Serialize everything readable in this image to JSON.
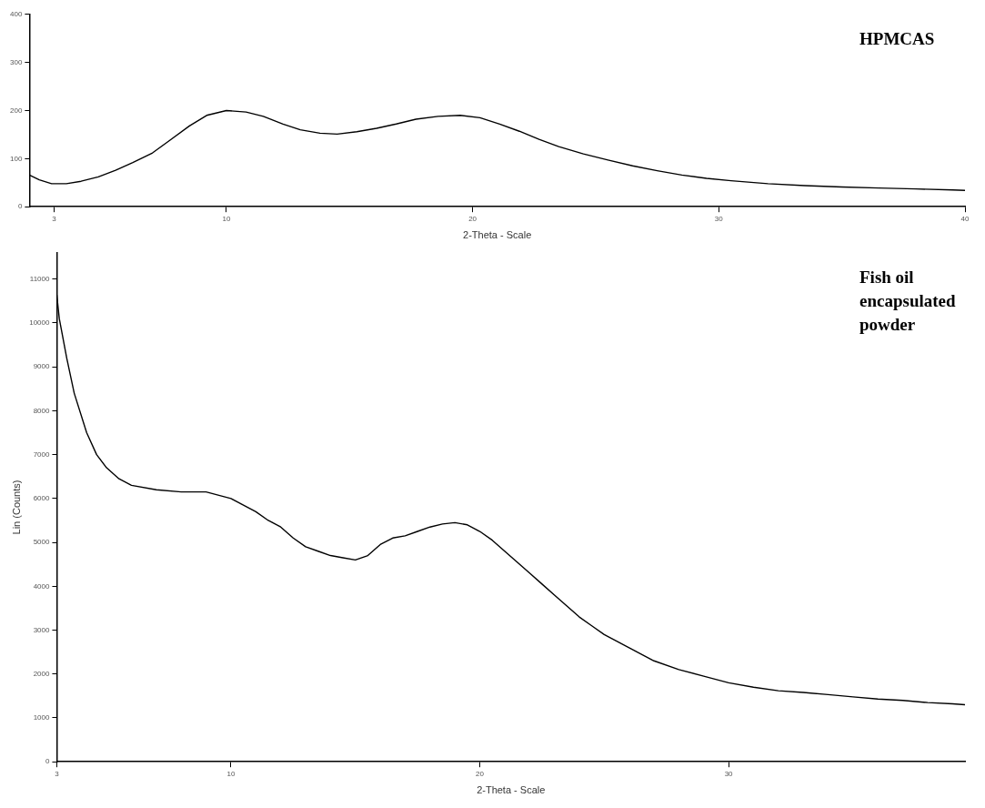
{
  "chart_data": [
    {
      "type": "line",
      "xlabel": "2-Theta - Scale",
      "annotations": [
        "HPMCAS"
      ],
      "xlim": [
        2,
        40
      ],
      "xticks": [
        3,
        10,
        20,
        30,
        40
      ],
      "ylim": [
        0,
        400
      ],
      "yticks": [
        0,
        100,
        200,
        300,
        400
      ],
      "grid": false,
      "series": [
        {
          "color": "#000000",
          "x": [
            2.0,
            2.4,
            2.9,
            3.5,
            4.1,
            4.8,
            5.5,
            6.2,
            7.0,
            7.7,
            8.5,
            9.2,
            10.0,
            10.8,
            11.5,
            12.3,
            13.0,
            13.8,
            14.5,
            15.3,
            16.1,
            16.9,
            17.7,
            18.6,
            19.5,
            20.3,
            21.1,
            21.9,
            22.7,
            23.5,
            24.5,
            25.5,
            26.5,
            27.5,
            28.5,
            29.5,
            30.5,
            32,
            33.5,
            35,
            36.5,
            38,
            39.5,
            40
          ],
          "values": [
            66,
            56,
            48,
            48,
            53,
            62,
            76,
            92,
            112,
            138,
            168,
            190,
            200,
            197,
            188,
            172,
            160,
            153,
            151,
            156,
            163,
            172,
            182,
            188,
            190,
            185,
            172,
            157,
            140,
            125,
            110,
            97,
            85,
            75,
            66,
            59,
            54,
            48,
            44,
            41,
            39,
            37,
            35,
            34
          ]
        }
      ]
    },
    {
      "type": "line",
      "xlabel": "2-Theta - Scale",
      "ylabel": "Lin (Counts)",
      "annotations": [
        "Fish oil encapsulated powder"
      ],
      "xlim": [
        3,
        39.5
      ],
      "xticks": [
        3,
        10,
        20,
        30
      ],
      "ylim": [
        0,
        11600
      ],
      "yticks": [
        0,
        1000,
        2000,
        3000,
        4000,
        5000,
        6000,
        7000,
        8000,
        9000,
        10000,
        11000
      ],
      "grid": false,
      "series": [
        {
          "color": "#000000",
          "x": [
            3.0,
            3.1,
            3.4,
            3.7,
            4.2,
            4.6,
            5.0,
            5.5,
            6.0,
            7.0,
            8.0,
            9.0,
            10.0,
            10.5,
            11.0,
            11.5,
            12.0,
            12.5,
            13.0,
            13.5,
            14.0,
            14.5,
            15.0,
            15.5,
            16.0,
            16.5,
            17.0,
            17.5,
            18.0,
            18.5,
            19.0,
            19.5,
            20.0,
            20.5,
            21.0,
            21.5,
            22.0,
            22.5,
            23.0,
            23.5,
            24.0,
            24.5,
            25.0,
            26.0,
            27.0,
            28.0,
            29.0,
            30.0,
            31.0,
            32.0,
            33.0,
            34.0,
            35.0,
            36.0,
            37.0,
            38.0,
            39.0,
            39.5
          ],
          "values": [
            10640,
            10100,
            9200,
            8400,
            7500,
            7000,
            6700,
            6450,
            6300,
            6200,
            6150,
            6150,
            6000,
            5850,
            5700,
            5500,
            5350,
            5100,
            4900,
            4800,
            4700,
            4650,
            4600,
            4700,
            4950,
            5100,
            5150,
            5250,
            5350,
            5420,
            5450,
            5400,
            5250,
            5050,
            4800,
            4550,
            4300,
            4050,
            3800,
            3550,
            3300,
            3100,
            2900,
            2600,
            2300,
            2100,
            1950,
            1800,
            1700,
            1620,
            1580,
            1530,
            1480,
            1430,
            1400,
            1350,
            1320,
            1300
          ]
        }
      ]
    }
  ]
}
